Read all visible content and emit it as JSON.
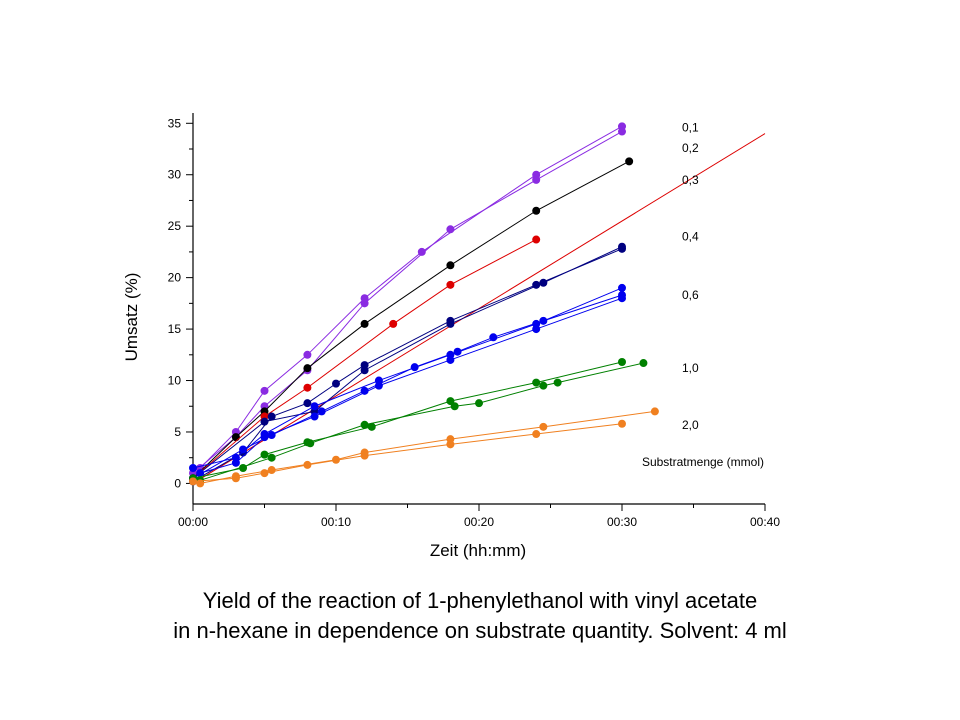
{
  "caption": {
    "line1": "Yield of the reaction of 1-phenylethanol with vinyl acetate",
    "line2": "in n-hexane in dependence on substrate quantity. Solvent: 4 ml"
  },
  "chart_data": {
    "type": "scatter",
    "xlabel": "Zeit (hh:mm)",
    "ylabel": "Umsatz (%)",
    "xlim": [
      0,
      40
    ],
    "ylim": [
      -2,
      36
    ],
    "xticks": [
      0,
      10,
      20,
      30,
      40
    ],
    "xtick_labels": [
      "00:00",
      "00:10",
      "00:20",
      "00:30",
      "00:40"
    ],
    "yticks": [
      0,
      5,
      10,
      15,
      20,
      25,
      30,
      35
    ],
    "ytick_labels": [
      "0",
      "5",
      "10",
      "15",
      "20",
      "25",
      "30",
      "35"
    ],
    "legend_title": "Substratmenge (mmol)",
    "grid": false,
    "series": [
      {
        "name": "0,1",
        "color": "#8a2be2",
        "label_y": 34.6,
        "runs": [
          {
            "x": [
              0.5,
              3,
              5,
              8,
              12,
              16,
              24,
              30
            ],
            "y": [
              1.5,
              5,
              9,
              12.5,
              18,
              22.5,
              30,
              34.7
            ]
          },
          {
            "x": [
              0,
              3,
              5,
              8,
              12,
              18,
              24,
              30
            ],
            "y": [
              1,
              4.5,
              7.5,
              11,
              17.5,
              24.7,
              29.5,
              34.2
            ]
          }
        ]
      },
      {
        "name": "0,2",
        "color": "#000000",
        "label_y": 32.6,
        "runs": [
          {
            "x": [
              0,
              3,
              5,
              8,
              12,
              18,
              24,
              30.5
            ],
            "y": [
              0.5,
              4.5,
              7,
              11.2,
              15.5,
              21.2,
              26.5,
              31.3
            ]
          }
        ]
      },
      {
        "name": "0,3",
        "color": "#dd0000",
        "label_y": 29.5,
        "fit": [
          [
            0,
            0
          ],
          [
            40,
            34
          ]
        ],
        "runs": [
          {
            "x": [
              0,
              5,
              8,
              14,
              18,
              24
            ],
            "y": [
              0.5,
              6.5,
              9.3,
              15.5,
              19.3,
              23.7
            ]
          }
        ]
      },
      {
        "name": "0,4",
        "color": "#000080",
        "label_y": 24,
        "runs": [
          {
            "x": [
              0,
              3.5,
              5.5,
              8,
              10,
              12,
              18,
              24,
              30
            ],
            "y": [
              0.2,
              3,
              6.5,
              7.8,
              9.7,
              11.5,
              15.8,
              19.3,
              22.8
            ]
          },
          {
            "x": [
              0,
              5,
              8.5,
              12,
              18,
              24.5,
              30
            ],
            "y": [
              0.5,
              6,
              7,
              11,
              15.5,
              19.5,
              23
            ]
          }
        ]
      },
      {
        "name": "0,6",
        "color": "#0000ee",
        "label_y": 18.3,
        "runs": [
          {
            "x": [
              0,
              3,
              5,
              8.5,
              13,
              18,
              24,
              30
            ],
            "y": [
              1.5,
              2.5,
              4.8,
              7.5,
              10,
              12.5,
              15.5,
              19
            ]
          },
          {
            "x": [
              0,
              3.5,
              5.5,
              9,
              12,
              15.5,
              18.5,
              21,
              24.5,
              30
            ],
            "y": [
              0.5,
              3.3,
              4.7,
              7,
              9,
              11.3,
              12.8,
              14.2,
              15.8,
              18.3
            ]
          },
          {
            "x": [
              0.5,
              3,
              5,
              8.5,
              13,
              18,
              24,
              30
            ],
            "y": [
              1,
              2,
              4.5,
              6.5,
              9.5,
              12,
              15,
              18
            ]
          }
        ]
      },
      {
        "name": "1,0",
        "color": "#008000",
        "label_y": 11.2,
        "runs": [
          {
            "x": [
              0,
              3.5,
              5,
              8,
              12.5,
              18,
              24,
              30
            ],
            "y": [
              0.5,
              1.5,
              2.8,
              4,
              5.5,
              8,
              9.8,
              11.8
            ]
          },
          {
            "x": [
              0.5,
              5.5,
              8.2,
              12,
              18.3,
              20,
              24.5,
              25.5,
              31.5
            ],
            "y": [
              0.3,
              2.5,
              3.9,
              5.7,
              7.5,
              7.8,
              9.5,
              9.8,
              11.7
            ]
          }
        ]
      },
      {
        "name": "2,0",
        "color": "#f08020",
        "label_y": 5.7,
        "runs": [
          {
            "x": [
              0,
              3,
              5,
              8,
              12,
              18,
              24,
              30
            ],
            "y": [
              0.2,
              0.5,
              1,
              1.8,
              2.7,
              3.8,
              4.8,
              5.8
            ]
          },
          {
            "x": [
              0.5,
              3,
              5.5,
              10,
              12,
              18,
              24.5,
              32.3
            ],
            "y": [
              0,
              0.7,
              1.3,
              2.3,
              3,
              4.3,
              5.5,
              7
            ]
          }
        ]
      }
    ]
  }
}
